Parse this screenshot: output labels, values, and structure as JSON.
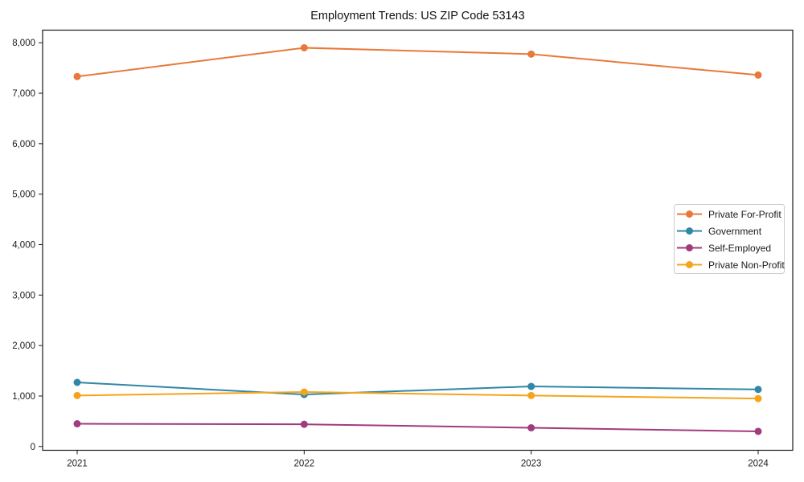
{
  "chart_data": {
    "type": "line",
    "title": "Employment Trends: US ZIP Code 53143",
    "xlabel": "",
    "ylabel": "",
    "x": [
      "2021",
      "2022",
      "2023",
      "2024"
    ],
    "series": [
      {
        "name": "Private For-Profit",
        "color": "#E8793B",
        "values": [
          7330,
          7900,
          7775,
          7360
        ]
      },
      {
        "name": "Government",
        "color": "#3187A5",
        "values": [
          1270,
          1030,
          1190,
          1130
        ]
      },
      {
        "name": "Self-Employed",
        "color": "#A03B7E",
        "values": [
          450,
          440,
          370,
          300
        ]
      },
      {
        "name": "Private Non-Profit",
        "color": "#F5A41B",
        "values": [
          1010,
          1080,
          1010,
          950
        ]
      }
    ],
    "ylim": [
      -75,
      8250
    ],
    "yticks": [
      0,
      1000,
      2000,
      3000,
      4000,
      5000,
      6000,
      7000,
      8000
    ],
    "ytick_labels": [
      "0",
      "1,000",
      "2,000",
      "3,000",
      "4,000",
      "5,000",
      "6,000",
      "7,000",
      "8,000"
    ],
    "grid": false,
    "legend_position": "right",
    "legend_border_color": "#cccccc",
    "axis_color": "#1a1a1a",
    "background_color": "#ffffff"
  }
}
